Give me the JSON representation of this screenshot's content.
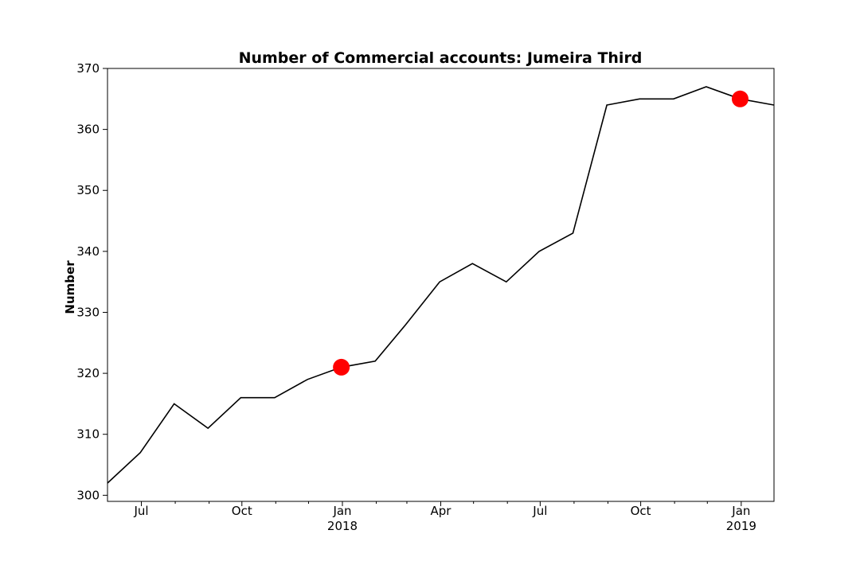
{
  "chart_data": {
    "type": "line",
    "title": "Number of Commercial accounts: Jumeira Third",
    "xlabel": "",
    "ylabel": "Number",
    "ylim": [
      299,
      370
    ],
    "xlim": [
      "2017-05-31",
      "2019-01-31"
    ],
    "yticks": [
      300,
      310,
      320,
      330,
      340,
      350,
      360,
      370
    ],
    "x_major_ticks": [
      {
        "date": "2017-07-01",
        "label": "Jul",
        "sublabel": ""
      },
      {
        "date": "2017-10-01",
        "label": "Oct",
        "sublabel": ""
      },
      {
        "date": "2018-01-01",
        "label": "Jan",
        "sublabel": "2018"
      },
      {
        "date": "2018-04-01",
        "label": "Apr",
        "sublabel": ""
      },
      {
        "date": "2018-07-01",
        "label": "Jul",
        "sublabel": ""
      },
      {
        "date": "2018-10-01",
        "label": "Oct",
        "sublabel": ""
      },
      {
        "date": "2019-01-01",
        "label": "Jan",
        "sublabel": "2019"
      }
    ],
    "x_minor_ticks": [
      "2017-08-01",
      "2017-09-01",
      "2017-11-01",
      "2017-12-01",
      "2018-02-01",
      "2018-03-01",
      "2018-05-01",
      "2018-06-01",
      "2018-08-01",
      "2018-09-01",
      "2018-11-01",
      "2018-12-01"
    ],
    "series": [
      {
        "color": "#000000",
        "x": [
          "2017-05-31",
          "2017-06-30",
          "2017-07-31",
          "2017-08-31",
          "2017-09-30",
          "2017-10-31",
          "2017-11-30",
          "2017-12-31",
          "2018-01-31",
          "2018-02-28",
          "2018-03-31",
          "2018-04-30",
          "2018-05-31",
          "2018-06-30",
          "2018-07-31",
          "2018-08-31",
          "2018-09-30",
          "2018-10-31",
          "2018-11-30",
          "2018-12-31",
          "2019-01-31"
        ],
        "values": [
          302,
          307,
          315,
          311,
          316,
          316,
          319,
          321,
          322,
          328,
          335,
          338,
          335,
          340,
          343,
          364,
          365,
          365,
          367,
          365,
          364
        ]
      }
    ],
    "highlights": [
      {
        "x": "2017-12-31",
        "value": 321,
        "color": "#ff0000"
      },
      {
        "x": "2018-12-31",
        "value": 365,
        "color": "#ff0000"
      }
    ],
    "grid": false,
    "legend": "none"
  }
}
